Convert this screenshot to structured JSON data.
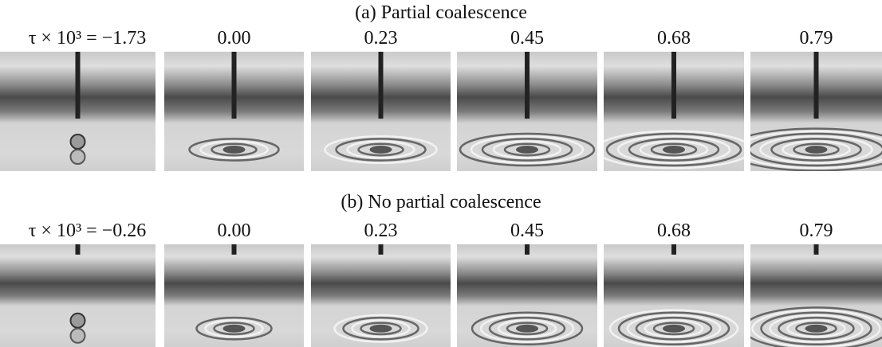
{
  "panels": [
    {
      "title": "(a) Partial coalescence",
      "labels": [
        "τ × 10³ = −1.73",
        "0.00",
        "0.23",
        "0.45",
        "0.68",
        "0.79"
      ]
    },
    {
      "title": "(b) No partial coalescence",
      "labels": [
        "τ × 10³ = −0.26",
        "0.00",
        "0.23",
        "0.45",
        "0.68",
        "0.79"
      ]
    }
  ]
}
